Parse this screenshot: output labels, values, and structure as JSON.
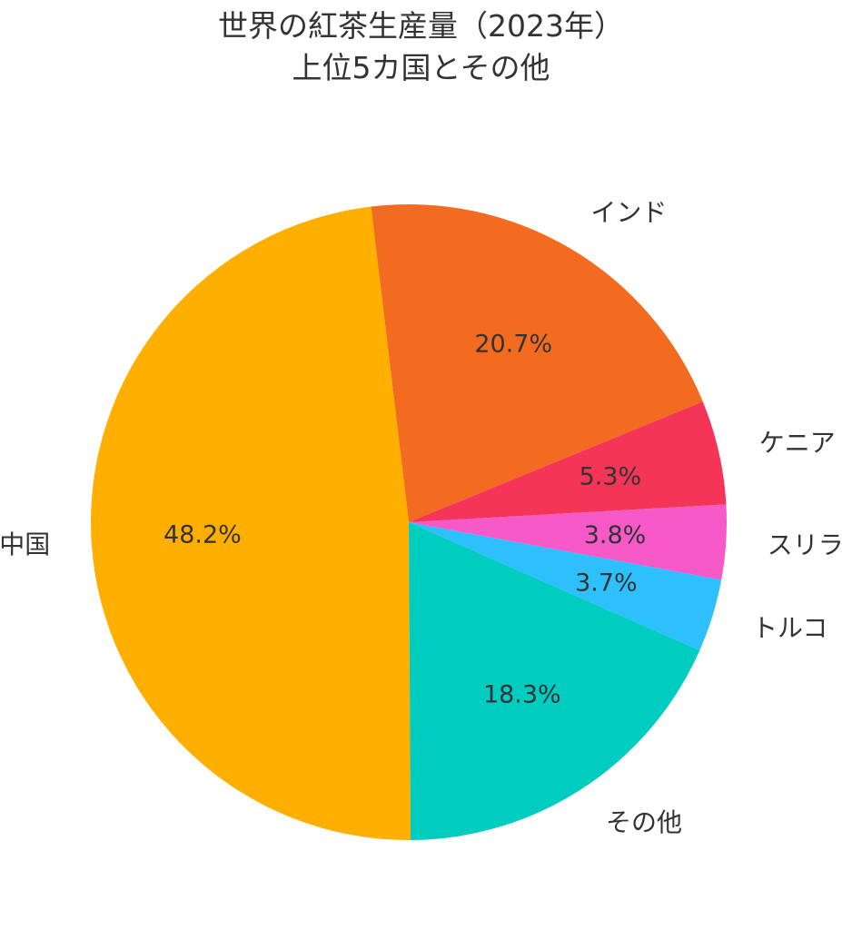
{
  "chart_data": {
    "type": "pie",
    "title": "世界の紅茶生産量（2023年）",
    "subtitle": "上位5カ国とその他",
    "categories": [
      "インド",
      "中国",
      "その他",
      "トルコ",
      "スリランカ",
      "ケニア"
    ],
    "values": [
      20.7,
      48.2,
      18.3,
      3.7,
      3.8,
      5.3
    ],
    "value_labels": [
      "20.7%",
      "48.2%",
      "18.3%",
      "3.7%",
      "3.8%",
      "5.3%"
    ],
    "colors": [
      "#F26B21",
      "#FFAF00",
      "#00CCBF",
      "#2EBFFF",
      "#F75AC8",
      "#F43557"
    ],
    "start_angle_deg": 22.3,
    "direction": "counterclockwise",
    "legend": "none"
  }
}
